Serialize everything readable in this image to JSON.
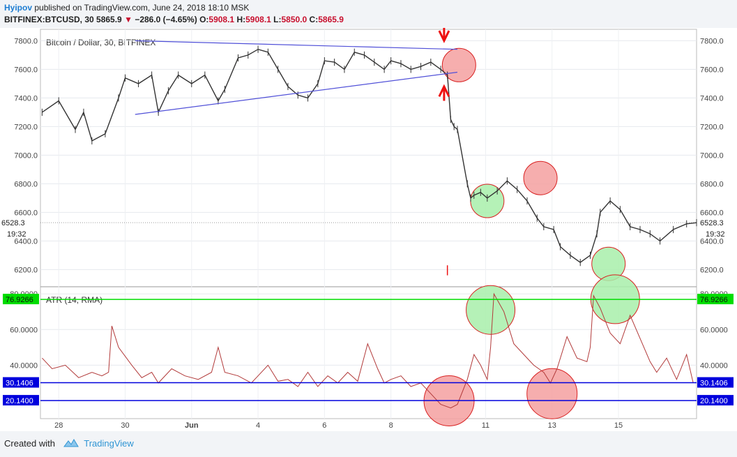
{
  "header": {
    "author": "Hyipov",
    "published_text": "published on TradingView.com, June 24, 2018 18:10 MSK",
    "symbol": "BITFINEX:BTCUSD, 30",
    "last": "5865.9",
    "change": "−286.0 (−4.65%)",
    "o_label": "O:",
    "o": "5908.1",
    "h_label": "H:",
    "h": "5908.1",
    "l_label": "L:",
    "l": "5850.0",
    "c_label": "C:",
    "c": "5865.9"
  },
  "footer": {
    "created_with": "Created with",
    "brand": "TradingView"
  },
  "colors": {
    "candle": "#333333",
    "triangle": "#5050d8",
    "atr": "#b23a3a",
    "green_level": "#00dd00",
    "blue_level": "#0000dd",
    "red_circle": "#f5a0a0",
    "green_circle": "#a8eeaa",
    "arrow": "#ee1111"
  },
  "chart_data": [
    {
      "type": "line",
      "title": "Bitcoin / Dollar, 30, BITFINEX",
      "ylim": [
        6080,
        7880
      ],
      "y_ticks": [
        6200,
        6400,
        6600,
        6800,
        7000,
        7200,
        7400,
        7600,
        7800
      ],
      "y_tick_labels": [
        "6200.0",
        "6400.0",
        "6600.0",
        "6800.0",
        "7000.0",
        "7200.0",
        "7400.0",
        "7600.0",
        "7800.0"
      ],
      "last_price_label": "6528.3",
      "last_time_label": "19:32",
      "x_ticks": [
        "28",
        "30",
        "Jun",
        "4",
        "6",
        "8",
        "11",
        "13",
        "15"
      ],
      "x_tick_pos_day": [
        -3,
        -1,
        1,
        3,
        5,
        7,
        9.85,
        11.85,
        13.85
      ],
      "xlim_day": [
        -3.55,
        16.2
      ],
      "series": [
        {
          "x_day": [
            -3.5,
            -3.0,
            -2.5,
            -2.25,
            -2.0,
            -1.6,
            -1.2,
            -1.0,
            -0.6,
            -0.2,
            0.0,
            0.3,
            0.6,
            1.0,
            1.4,
            1.8,
            2.0,
            2.4,
            2.7,
            3.0,
            3.3,
            3.6,
            3.9,
            4.2,
            4.5,
            4.8,
            5.0,
            5.3,
            5.6,
            5.9,
            6.2,
            6.5,
            6.8,
            7.0,
            7.3,
            7.6,
            7.9,
            8.2,
            8.5,
            8.7,
            8.8,
            8.9,
            9.0,
            9.3,
            9.4,
            9.5,
            9.7,
            9.9,
            10.2,
            10.5,
            10.8,
            11.1,
            11.4,
            11.6,
            11.9,
            12.1,
            12.4,
            12.7,
            13.0,
            13.2,
            13.3,
            13.6,
            13.9,
            14.2,
            14.5,
            14.8,
            15.1,
            15.5,
            15.9,
            16.2
          ],
          "y": [
            7300,
            7380,
            7180,
            7300,
            7100,
            7150,
            7400,
            7540,
            7500,
            7560,
            7300,
            7450,
            7560,
            7500,
            7560,
            7380,
            7460,
            7680,
            7700,
            7740,
            7720,
            7600,
            7480,
            7420,
            7400,
            7500,
            7660,
            7650,
            7600,
            7720,
            7700,
            7650,
            7600,
            7660,
            7640,
            7600,
            7620,
            7650,
            7600,
            7560,
            7250,
            7200,
            7180,
            6800,
            6700,
            6720,
            6740,
            6700,
            6750,
            6820,
            6760,
            6680,
            6560,
            6500,
            6480,
            6360,
            6300,
            6250,
            6300,
            6450,
            6600,
            6680,
            6620,
            6500,
            6480,
            6450,
            6400,
            6480,
            6520,
            6528
          ]
        }
      ],
      "annotations": [
        "ascending/descending triangle lines",
        "red down arrow",
        "red up arrow",
        "highlight circles"
      ]
    },
    {
      "type": "line",
      "title": "ATR (14, RMA)",
      "ylim": [
        10,
        84
      ],
      "y_ticks": [
        40,
        60,
        80
      ],
      "y_tick_labels": [
        "40.0000",
        "60.0000",
        "80.0000"
      ],
      "level_labels": [
        "76.9266",
        "30.1406",
        "20.1400"
      ],
      "levels": [
        76.9266,
        30.1406,
        20.14
      ],
      "series": [
        {
          "x_day": [
            -3.5,
            -3.2,
            -2.8,
            -2.4,
            -2.0,
            -1.7,
            -1.5,
            -1.4,
            -1.2,
            -0.8,
            -0.5,
            -0.2,
            0.0,
            0.4,
            0.8,
            1.2,
            1.6,
            1.8,
            2.0,
            2.4,
            2.8,
            3.0,
            3.3,
            3.6,
            3.9,
            4.2,
            4.5,
            4.8,
            5.1,
            5.4,
            5.7,
            6.0,
            6.3,
            6.6,
            6.8,
            7.0,
            7.3,
            7.6,
            7.9,
            8.2,
            8.5,
            8.8,
            9.0,
            9.3,
            9.5,
            9.7,
            9.9,
            10.0,
            10.1,
            10.4,
            10.7,
            11.0,
            11.3,
            11.6,
            11.8,
            12.0,
            12.3,
            12.6,
            12.9,
            13.0,
            13.1,
            13.3,
            13.6,
            13.9,
            14.2,
            14.5,
            14.8,
            15.0,
            15.3,
            15.6,
            15.9,
            16.1
          ],
          "y": [
            44,
            38,
            40,
            33,
            36,
            34,
            36,
            62,
            50,
            40,
            33,
            36,
            30,
            38,
            34,
            32,
            36,
            50,
            36,
            34,
            30,
            34,
            40,
            31,
            32,
            28,
            36,
            28,
            34,
            30,
            36,
            31,
            52,
            38,
            30,
            32,
            34,
            28,
            30,
            24,
            18,
            16,
            18,
            32,
            46,
            40,
            32,
            50,
            80,
            70,
            52,
            46,
            40,
            36,
            30,
            38,
            56,
            44,
            42,
            50,
            79,
            72,
            58,
            52,
            68,
            55,
            42,
            36,
            44,
            32,
            46,
            30
          ]
        }
      ]
    }
  ]
}
